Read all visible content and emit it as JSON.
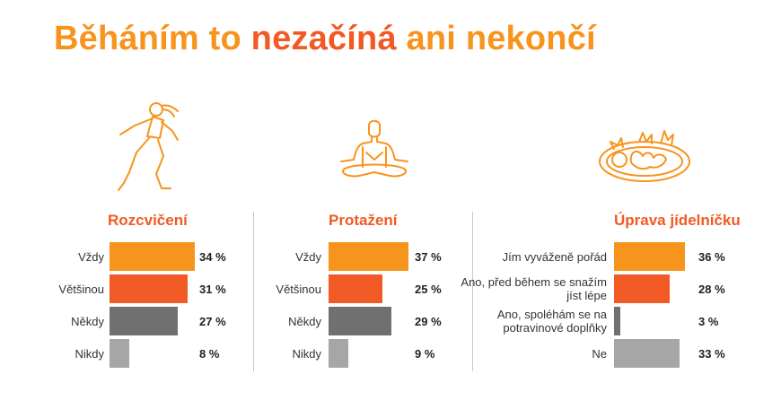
{
  "title": {
    "part1": "Běháním to ",
    "part2": "nezačíná",
    "part3": " ani nekončí"
  },
  "colors": {
    "orange": "#F7941D",
    "red_orange": "#F15A24",
    "dark_gray": "#707070",
    "light_gray": "#A6A6A6",
    "divider": "#c8c8c8"
  },
  "icons": [
    "runner-icon",
    "meditation-icon",
    "food-plate-icon"
  ],
  "chart_data": [
    {
      "type": "bar",
      "title": "Rozcvičení",
      "categories": [
        "Vždy",
        "Většinou",
        "Někdy",
        "Nikdy"
      ],
      "values": [
        34,
        31,
        27,
        8
      ],
      "labels": [
        "34 %",
        "31 %",
        "27 %",
        "8 %"
      ]
    },
    {
      "type": "bar",
      "title": "Protažení",
      "categories": [
        "Vždy",
        "Většinou",
        "Někdy",
        "Nikdy"
      ],
      "values": [
        37,
        25,
        29,
        9
      ],
      "labels": [
        "37 %",
        "25 %",
        "29 %",
        "9 %"
      ]
    },
    {
      "type": "bar",
      "title": "Úprava jídelníčku",
      "categories": [
        "Jím vyváženě pořád",
        "Ano, před během se snažím jíst lépe",
        "Ano, spoléhám se na potravinové doplňky",
        "Ne"
      ],
      "values": [
        36,
        28,
        3,
        33
      ],
      "labels": [
        "36 %",
        "28 %",
        "3 %",
        "33 %"
      ]
    }
  ]
}
